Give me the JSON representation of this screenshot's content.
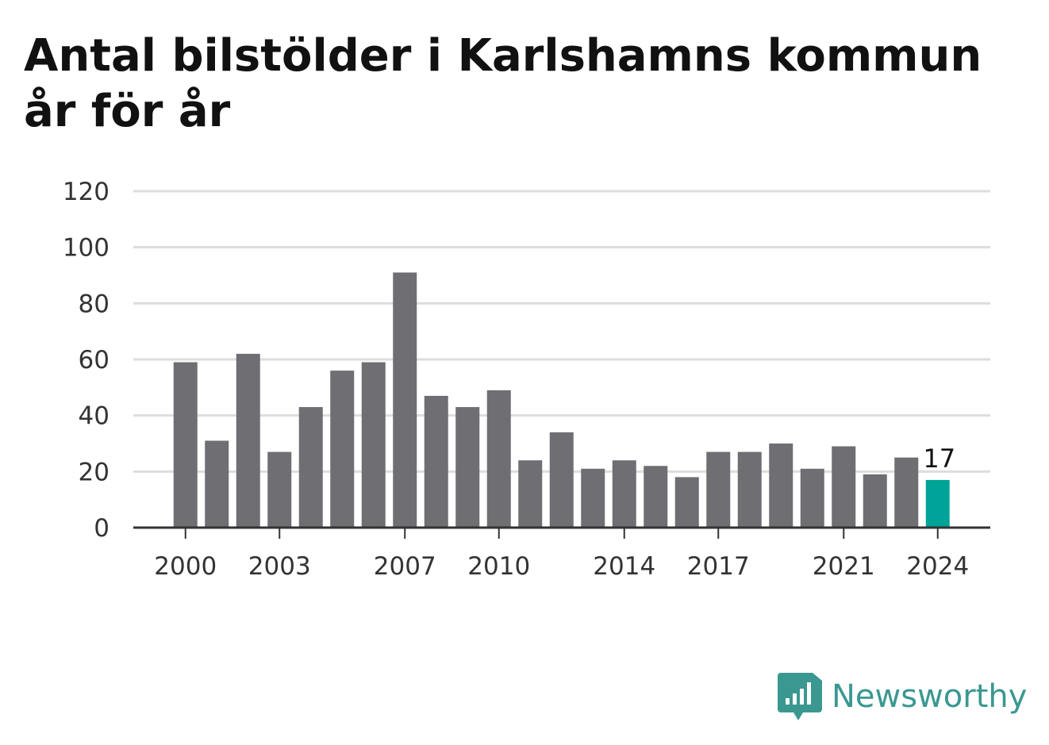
{
  "chart_data": {
    "type": "bar",
    "title": "Antal bilstölder i Karlshamns kommun år för år",
    "xlabel": "",
    "ylabel": "",
    "ylim": [
      0,
      120
    ],
    "yticks": [
      "0",
      "20",
      "40",
      "60",
      "80",
      "100",
      "120"
    ],
    "categories": [
      "2000",
      "2001",
      "2002",
      "2003",
      "2004",
      "2005",
      "2006",
      "2007",
      "2008",
      "2009",
      "2010",
      "2011",
      "2012",
      "2013",
      "2014",
      "2015",
      "2016",
      "2017",
      "2018",
      "2019",
      "2020",
      "2021",
      "2022",
      "2023",
      "2024"
    ],
    "values": [
      59,
      31,
      62,
      27,
      43,
      56,
      59,
      91,
      47,
      43,
      49,
      24,
      34,
      21,
      24,
      22,
      18,
      27,
      27,
      30,
      21,
      29,
      19,
      25,
      17
    ],
    "xtick_labels": [
      "2000",
      "2003",
      "2007",
      "2010",
      "2014",
      "2017",
      "2021",
      "2024"
    ],
    "highlight": {
      "category": "2024",
      "value_label": "17"
    },
    "colors": {
      "bar": "#6e6e73",
      "highlight": "#00a398",
      "grid": "#dddddd",
      "axis": "#333333"
    },
    "grid": true
  },
  "brand": {
    "name": "Newsworthy",
    "icon": "bar-chart-speech-bubble-icon",
    "color": "#3a9891"
  }
}
